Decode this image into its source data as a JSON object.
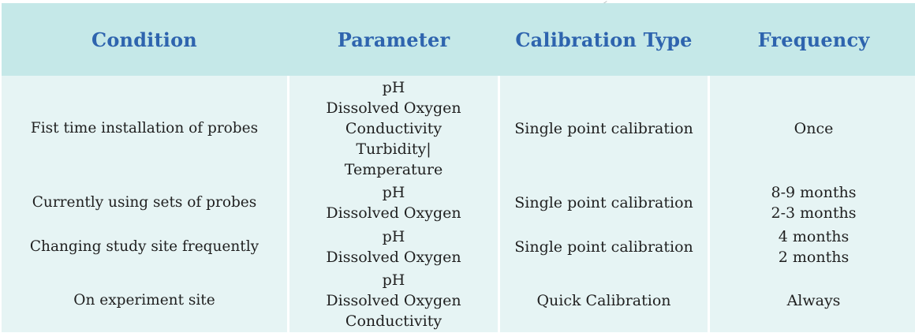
{
  "table": {
    "headers": [
      "Condition",
      "Parameter",
      "Calibration Type",
      "Frequency"
    ],
    "rows": [
      {
        "condition": "Fist time installation of probes",
        "parameters": [
          "pH",
          "Dissolved Oxygen",
          "Conductivity",
          "Turbidity|",
          "Temperature"
        ],
        "calibration_type": "Single point calibration",
        "frequency": [
          "Once"
        ]
      },
      {
        "condition": "Currently using sets of probes",
        "parameters": [
          "pH",
          "Dissolved Oxygen"
        ],
        "calibration_type": "Single point calibration",
        "frequency": [
          "8-9 months",
          "2-3 months"
        ]
      },
      {
        "condition": "Changing study site frequently",
        "parameters": [
          "pH",
          "Dissolved Oxygen"
        ],
        "calibration_type": "Single point calibration",
        "frequency": [
          "4 months",
          "2 months"
        ]
      },
      {
        "condition": "On experiment site",
        "parameters": [
          "pH",
          "Dissolved Oxygen",
          "Conductivity"
        ],
        "calibration_type": "Quick Calibration",
        "frequency": [
          "Always"
        ]
      }
    ]
  },
  "colors": {
    "header_background": "#c5e8e8",
    "header_text": "#2e64ae",
    "body_background": "#e6f4f4",
    "body_text": "#1f1f1f",
    "separator": "#ffffff"
  }
}
